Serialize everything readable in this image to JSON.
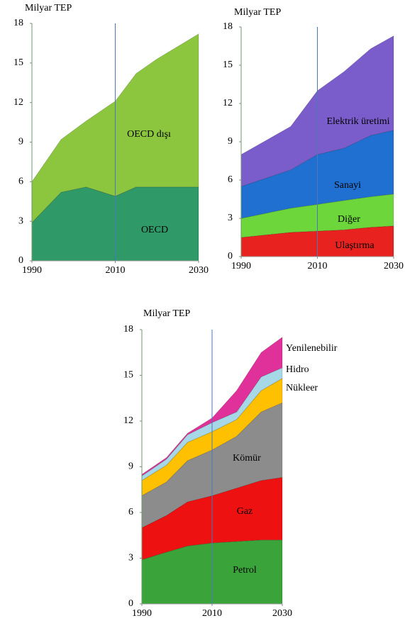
{
  "chart_data": [
    {
      "type": "stacked_area",
      "ylabel": "Milyar TEP",
      "x": [
        1990,
        1997,
        2003,
        2010,
        2015,
        2020,
        2030
      ],
      "series": [
        {
          "name": "OECD",
          "color": "#2f9a68",
          "values": [
            2.9,
            5.2,
            5.6,
            4.9,
            5.6,
            5.6,
            5.6
          ]
        },
        {
          "name": "OECD dışı",
          "color": "#8cc63f",
          "values": [
            3.1,
            4.0,
            5.0,
            7.2,
            8.6,
            9.7,
            11.6
          ]
        }
      ],
      "xlim": [
        1990,
        2030
      ],
      "xticks": [
        1990,
        2010,
        2030
      ],
      "ylim": [
        0,
        18
      ],
      "yticks": [
        0,
        3,
        6,
        9,
        12,
        15,
        18
      ],
      "vline": 2010
    },
    {
      "type": "stacked_area",
      "ylabel": "Milyar TEP",
      "x": [
        1990,
        2003,
        2010,
        2017,
        2024,
        2030
      ],
      "series": [
        {
          "name": "Ulaştırma",
          "color": "#e8231f",
          "values": [
            1.5,
            1.9,
            2.0,
            2.1,
            2.3,
            2.4
          ]
        },
        {
          "name": "Diğer",
          "color": "#6cd63a",
          "values": [
            1.5,
            1.9,
            2.1,
            2.3,
            2.4,
            2.5
          ]
        },
        {
          "name": "Sanayi",
          "color": "#1f70d0",
          "values": [
            2.5,
            3.0,
            3.9,
            4.1,
            4.8,
            5.0
          ]
        },
        {
          "name": "Elektrik üretimi",
          "color": "#7b5ccb",
          "values": [
            2.5,
            3.4,
            5.0,
            6.0,
            6.8,
            7.4
          ]
        }
      ],
      "xlim": [
        1990,
        2030
      ],
      "xticks": [
        1990,
        2010,
        2030
      ],
      "ylim": [
        0,
        18
      ],
      "yticks": [
        0,
        3,
        6,
        9,
        12,
        15,
        18
      ],
      "vline": 2010
    },
    {
      "type": "stacked_area",
      "ylabel": "Milyar TEP",
      "x": [
        1990,
        1997,
        2003,
        2010,
        2017,
        2024,
        2030
      ],
      "series": [
        {
          "name": "Petrol",
          "color": "#3aa33a",
          "values": [
            2.9,
            3.4,
            3.8,
            4.0,
            4.1,
            4.2,
            4.2
          ]
        },
        {
          "name": "Gaz",
          "color": "#ee1111",
          "values": [
            2.1,
            2.4,
            2.9,
            3.1,
            3.5,
            3.9,
            4.1
          ]
        },
        {
          "name": "Kömür",
          "color": "#8c8c8c",
          "values": [
            2.1,
            2.2,
            2.7,
            3.0,
            3.4,
            4.5,
            4.9
          ]
        },
        {
          "name": "Nükleer",
          "color": "#ffc000",
          "values": [
            1.0,
            1.1,
            1.2,
            1.2,
            1.1,
            1.4,
            1.6
          ]
        },
        {
          "name": "Hidro",
          "color": "#a6d8e8",
          "values": [
            0.3,
            0.4,
            0.5,
            0.6,
            0.5,
            0.9,
            0.7
          ]
        },
        {
          "name": "Yenilenebilir",
          "color": "#e0309a",
          "values": [
            0.1,
            0.1,
            0.1,
            0.3,
            1.4,
            1.6,
            2.0
          ]
        }
      ],
      "xlim": [
        1990,
        2030
      ],
      "xticks": [
        1990,
        2010,
        2030
      ],
      "ylim": [
        0,
        18
      ],
      "yticks": [
        0,
        3,
        6,
        9,
        12,
        15,
        18
      ],
      "vline": 2010
    }
  ]
}
